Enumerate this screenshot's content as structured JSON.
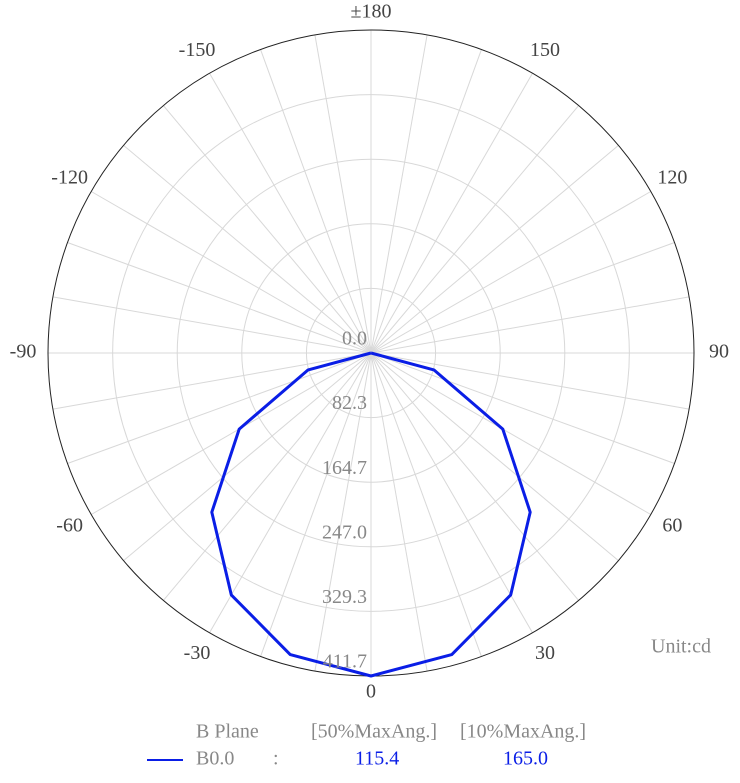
{
  "chart_data": {
    "type": "polar",
    "theta": [
      -90,
      -75,
      -60,
      -45,
      -30,
      -15,
      0,
      15,
      30,
      45,
      60,
      75,
      90
    ],
    "series": [
      {
        "name": "B0.0",
        "color": "#0a1ee6",
        "values": [
          0,
          83,
          194,
          287,
          356,
          398,
          411.7,
          398,
          356,
          287,
          194,
          83,
          0
        ],
        "beam_angles": [
          115.4,
          165
        ],
        "beam_angle_labels": [
          "115.4",
          "165.0"
        ]
      }
    ],
    "rlim": [
      0,
      411.7
    ],
    "rticks": [
      {
        "value": 0,
        "label": "0.0"
      },
      82.3,
      164.7,
      {
        "value": 247,
        "label": "247.0"
      },
      329.3,
      411.7
    ],
    "thetaticks": [
      0,
      30,
      60,
      90,
      120,
      150,
      {
        "value": 180,
        "label": "±180"
      },
      -150,
      -120,
      -90,
      -60,
      -30
    ],
    "minor_thetaticks": [
      10,
      20,
      40,
      50,
      70,
      80,
      100,
      110,
      130,
      140,
      160,
      170,
      -170,
      -160,
      -140,
      -130,
      -110,
      -100,
      -80,
      -70,
      -50,
      -40,
      -20,
      -10
    ],
    "grid": true,
    "unit_label": "Unit:cd",
    "legend_headers": [
      "B Plane",
      "[50%MaxAng.]",
      "[10%MaxAng.]"
    ],
    "legend_separator": ":"
  }
}
